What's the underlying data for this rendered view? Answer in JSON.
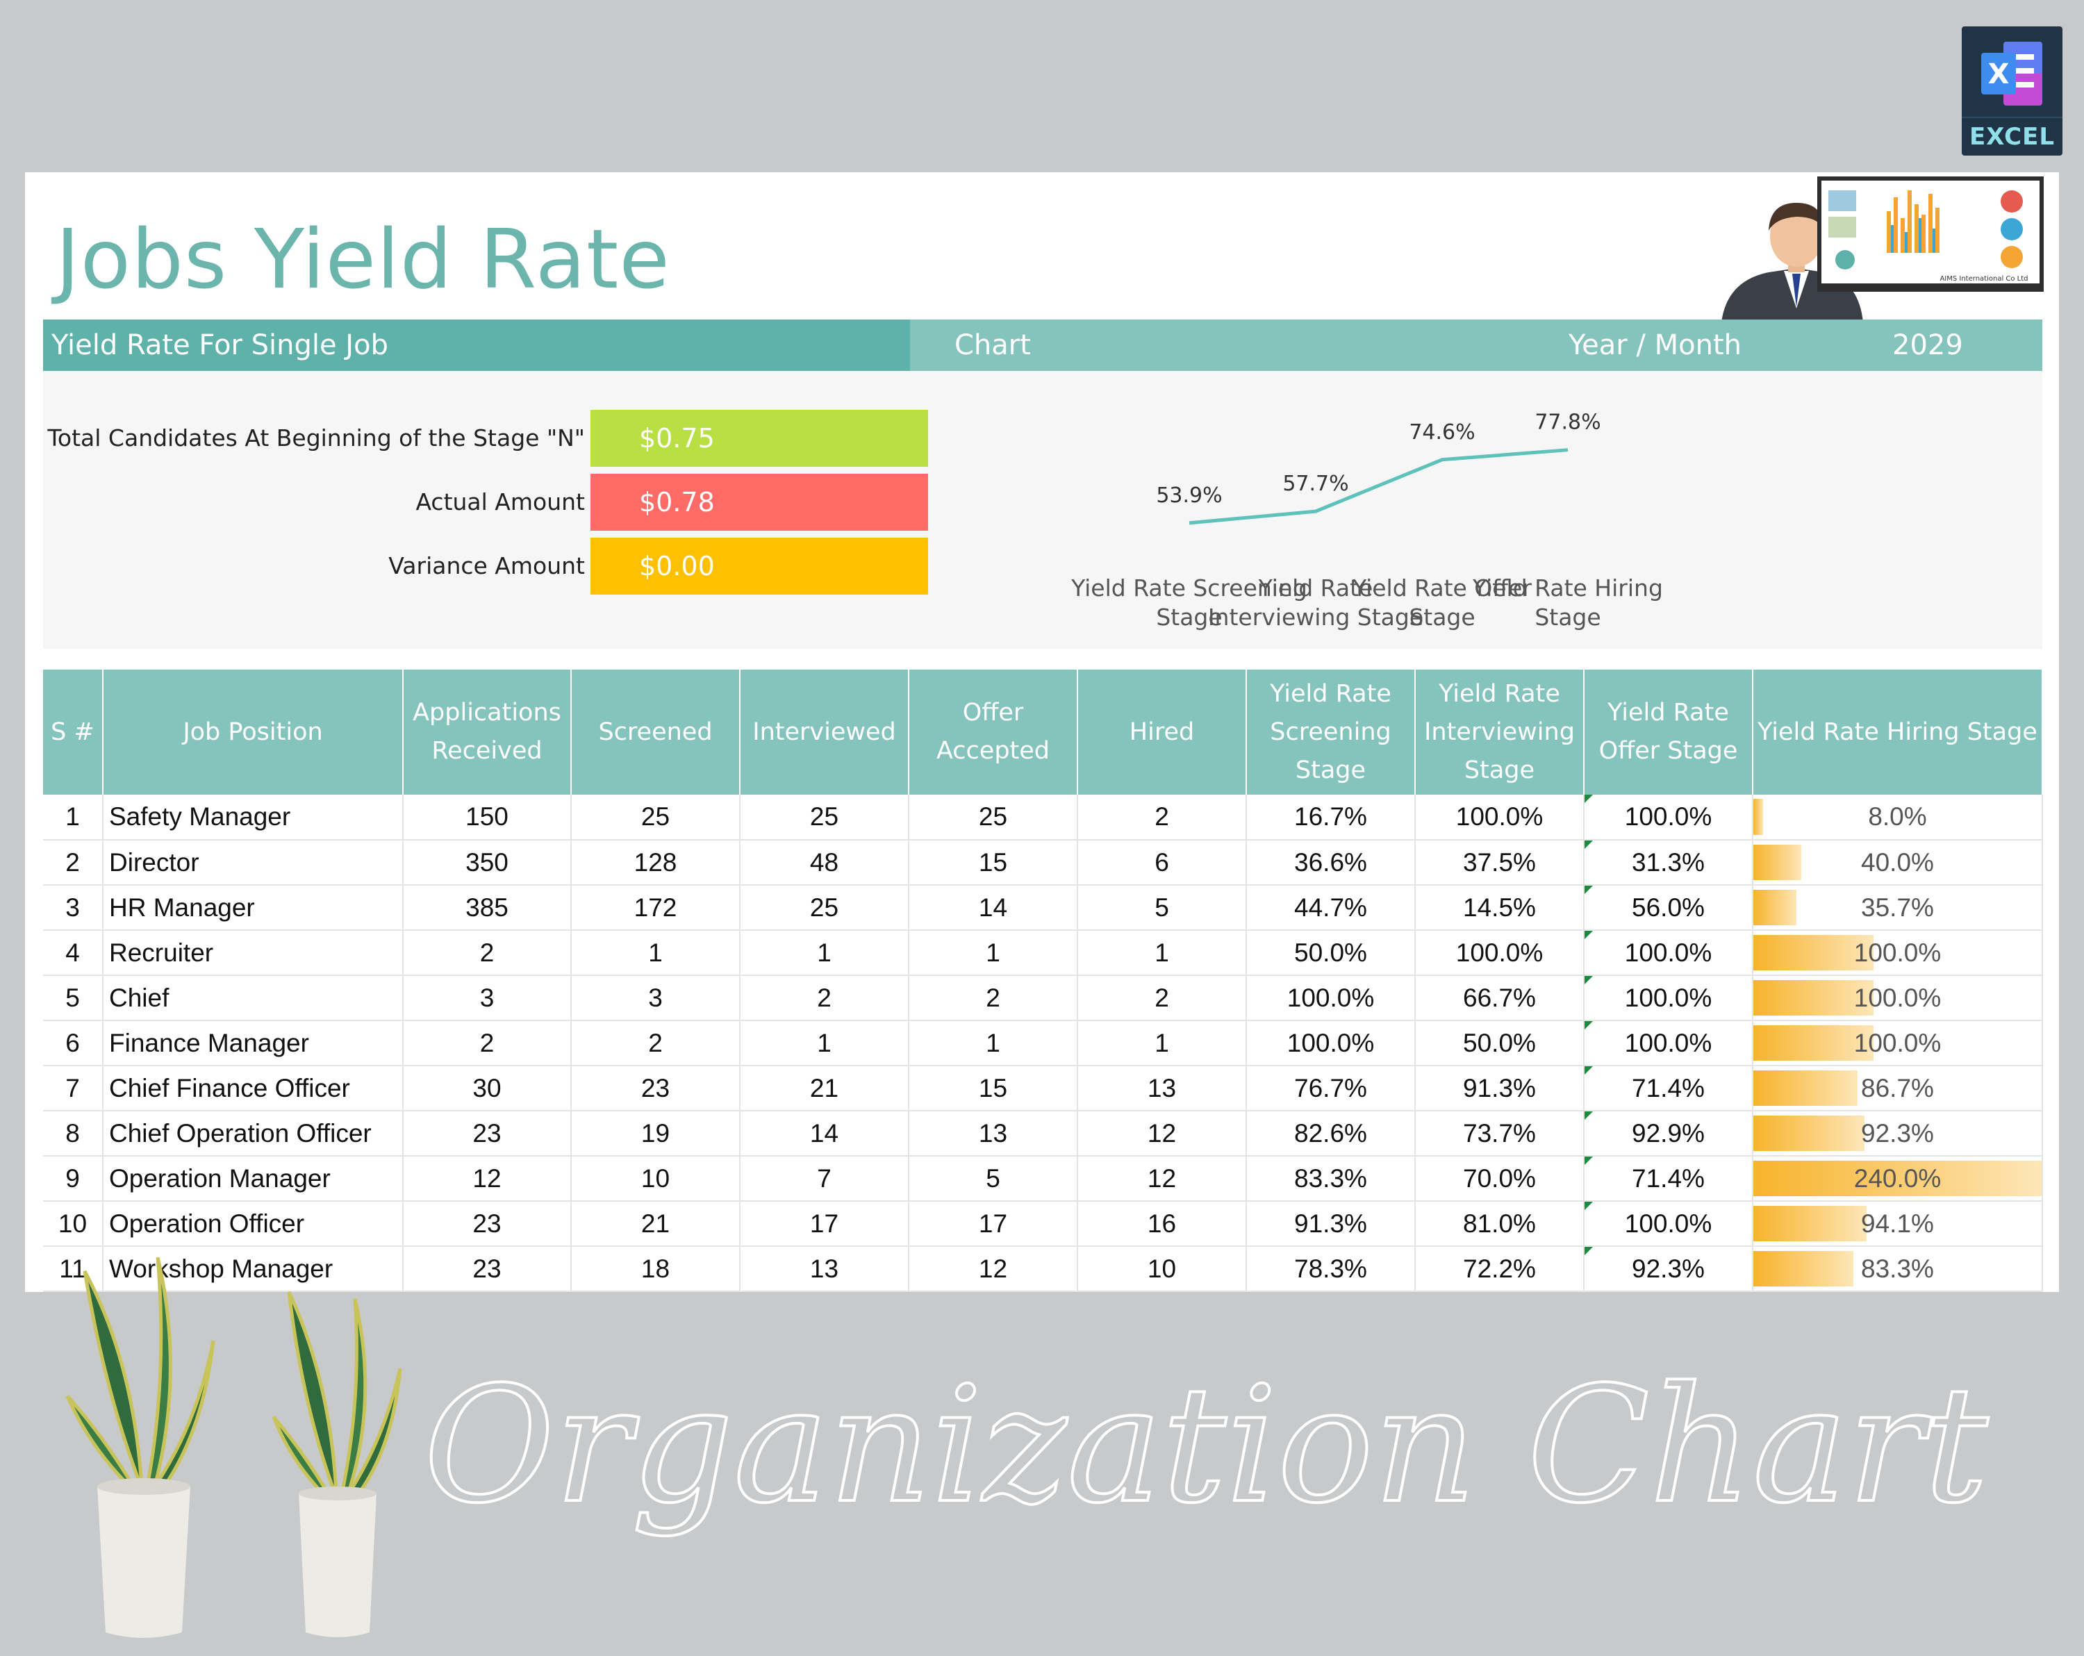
{
  "badge": {
    "label": "EXCEL"
  },
  "title": "Jobs Yield Rate",
  "presenter_caption": "AIMS International Co Ltd",
  "band": {
    "left_title": "Yield Rate For Single Job",
    "chart_title": "Chart",
    "year_month_label": "Year / Month",
    "year_month_value": "2029"
  },
  "kpis": [
    {
      "label": "Total Candidates At Beginning of the Stage \"N\"",
      "value": "$0.75",
      "color": "#b8e043"
    },
    {
      "label": "Actual Amount",
      "value": "$0.78",
      "color": "#ff6b67"
    },
    {
      "label": "Variance Amount",
      "value": "$0.00",
      "color": "#ffc000"
    }
  ],
  "chart_data": {
    "type": "line",
    "categories": [
      "Yield Rate Screening Stage",
      "Yield Rate Interviewing Stage",
      "Yield Rate Offer Stage",
      "Yield Rate Hiring Stage"
    ],
    "category_lines": [
      [
        "Yield Rate Screening",
        "Stage"
      ],
      [
        "Yield Rate",
        "Interviewing Stage"
      ],
      [
        "Yield Rate Offer",
        "Stage"
      ],
      [
        "Yield Rate Hiring",
        "Stage"
      ]
    ],
    "values": [
      53.9,
      57.7,
      74.6,
      77.8
    ],
    "labels": [
      "53.9%",
      "57.7%",
      "74.6%",
      "77.8%"
    ],
    "line_color": "#5ec2bb",
    "ylim": [
      0,
      100
    ]
  },
  "table": {
    "headers": [
      "S #",
      "Job Position",
      "Applications Received",
      "Screened",
      "Interviewed",
      "Offer Accepted",
      "Hired",
      "Yield Rate Screening Stage",
      "Yield Rate Interviewing Stage",
      "Yield Rate Offer Stage",
      "Yield Rate Hiring Stage"
    ],
    "header_lines": [
      [
        "S #"
      ],
      [
        "Job Position"
      ],
      [
        "Applications",
        "Received"
      ],
      [
        "Screened"
      ],
      [
        "Interviewed"
      ],
      [
        "Offer",
        "Accepted"
      ],
      [
        "Hired"
      ],
      [
        "Yield Rate",
        "Screening",
        "Stage"
      ],
      [
        "Yield Rate",
        "Interviewing",
        "Stage"
      ],
      [
        "Yield Rate",
        "Offer Stage"
      ],
      [
        "Yield Rate Hiring Stage"
      ]
    ],
    "rows": [
      {
        "sn": "1",
        "position": "Safety Manager",
        "applications": "150",
        "screened": "25",
        "interviewed": "25",
        "offer": "25",
        "hired": "2",
        "yr_screen": "16.7%",
        "yr_interview": "100.0%",
        "yr_offer": "100.0%",
        "yr_hire": "8.0%",
        "hire_value": 8.0
      },
      {
        "sn": "2",
        "position": "Director",
        "applications": "350",
        "screened": "128",
        "interviewed": "48",
        "offer": "15",
        "hired": "6",
        "yr_screen": "36.6%",
        "yr_interview": "37.5%",
        "yr_offer": "31.3%",
        "yr_hire": "40.0%",
        "hire_value": 40.0
      },
      {
        "sn": "3",
        "position": "HR Manager",
        "applications": "385",
        "screened": "172",
        "interviewed": "25",
        "offer": "14",
        "hired": "5",
        "yr_screen": "44.7%",
        "yr_interview": "14.5%",
        "yr_offer": "56.0%",
        "yr_hire": "35.7%",
        "hire_value": 35.7
      },
      {
        "sn": "4",
        "position": "Recruiter",
        "applications": "2",
        "screened": "1",
        "interviewed": "1",
        "offer": "1",
        "hired": "1",
        "yr_screen": "50.0%",
        "yr_interview": "100.0%",
        "yr_offer": "100.0%",
        "yr_hire": "100.0%",
        "hire_value": 100.0
      },
      {
        "sn": "5",
        "position": "Chief",
        "applications": "3",
        "screened": "3",
        "interviewed": "2",
        "offer": "2",
        "hired": "2",
        "yr_screen": "100.0%",
        "yr_interview": "66.7%",
        "yr_offer": "100.0%",
        "yr_hire": "100.0%",
        "hire_value": 100.0
      },
      {
        "sn": "6",
        "position": "Finance Manager",
        "applications": "2",
        "screened": "2",
        "interviewed": "1",
        "offer": "1",
        "hired": "1",
        "yr_screen": "100.0%",
        "yr_interview": "50.0%",
        "yr_offer": "100.0%",
        "yr_hire": "100.0%",
        "hire_value": 100.0
      },
      {
        "sn": "7",
        "position": "Chief Finance Officer",
        "applications": "30",
        "screened": "23",
        "interviewed": "21",
        "offer": "15",
        "hired": "13",
        "yr_screen": "76.7%",
        "yr_interview": "91.3%",
        "yr_offer": "71.4%",
        "yr_hire": "86.7%",
        "hire_value": 86.7
      },
      {
        "sn": "8",
        "position": "Chief Operation Officer",
        "applications": "23",
        "screened": "19",
        "interviewed": "14",
        "offer": "13",
        "hired": "12",
        "yr_screen": "82.6%",
        "yr_interview": "73.7%",
        "yr_offer": "92.9%",
        "yr_hire": "92.3%",
        "hire_value": 92.3
      },
      {
        "sn": "9",
        "position": "Operation Manager",
        "applications": "12",
        "screened": "10",
        "interviewed": "7",
        "offer": "5",
        "hired": "12",
        "yr_screen": "83.3%",
        "yr_interview": "70.0%",
        "yr_offer": "71.4%",
        "yr_hire": "240.0%",
        "hire_value": 240.0
      },
      {
        "sn": "10",
        "position": "Operation Officer",
        "applications": "23",
        "screened": "21",
        "interviewed": "17",
        "offer": "17",
        "hired": "16",
        "yr_screen": "91.3%",
        "yr_interview": "81.0%",
        "yr_offer": "100.0%",
        "yr_hire": "94.1%",
        "hire_value": 94.1
      },
      {
        "sn": "11",
        "position": "Workshop Manager",
        "applications": "23",
        "screened": "18",
        "interviewed": "13",
        "offer": "12",
        "hired": "10",
        "yr_screen": "78.3%",
        "yr_interview": "72.2%",
        "yr_offer": "92.3%",
        "yr_hire": "83.3%",
        "hire_value": 83.3
      }
    ],
    "hire_bar_max": 240
  },
  "footer_script": "Organization Chart"
}
